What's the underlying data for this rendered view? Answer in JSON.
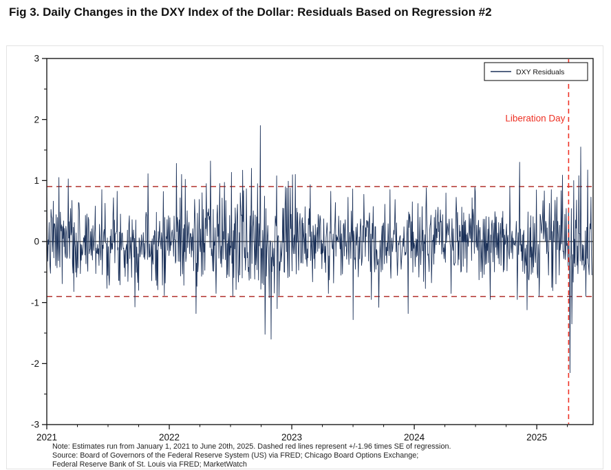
{
  "figure": {
    "title": "Fig 3. Daily Changes in the DXY Index of the Dollar: Residuals Based on Regression #2"
  },
  "notes": {
    "line1": "Note: Estimates run from January 1, 2021 to June 20th, 2025. Dashed red lines represent +/-1.96 times SE of regression.",
    "line2": "Source: Board of Governors of the Federal Reserve System (US) via FRED; Chicago Board Options Exchange;",
    "line3": "Federal Reserve Bank of St. Louis via FRED; MarketWatch"
  },
  "chart_data": {
    "type": "line",
    "title": "Fig 3. Daily Changes in the DXY Index of the Dollar: Residuals Based on Regression #2",
    "xlabel": "",
    "ylabel": "",
    "x_range": [
      2021,
      2025.46
    ],
    "ylim": [
      -3,
      3
    ],
    "yticks": [
      3,
      2,
      1,
      0,
      -1,
      -2,
      -3
    ],
    "xticks": [
      2021,
      2022,
      2023,
      2024,
      2025
    ],
    "grid": false,
    "zero_line": 0,
    "series": [
      {
        "name": "DXY Residuals",
        "color": "#1b3159"
      }
    ],
    "legend": {
      "label": "DXY Residuals",
      "position": "top-right"
    },
    "se_bands": {
      "upper": 0.9,
      "lower": -0.9,
      "color": "#b8403c",
      "style": "dashed",
      "meaning": "+/-1.96 times SE of regression"
    },
    "event_line": {
      "x": 2025.26,
      "label": "Liberation Day",
      "color": "#ee3124",
      "style": "dashed"
    },
    "generation": {
      "seed": 7,
      "points": 1170,
      "base_sd": 0.33,
      "clamp": 1.32,
      "data_end": 2025.45,
      "volatility": [
        {
          "from": 2021.0,
          "to": 2022.3,
          "sd": 0.34
        },
        {
          "from": 2022.3,
          "to": 2023.1,
          "sd": 0.44
        },
        {
          "from": 2023.1,
          "to": 2024.9,
          "sd": 0.3
        },
        {
          "from": 2024.9,
          "to": 2025.46,
          "sd": 0.38
        }
      ],
      "spikes": [
        {
          "t": 2021.1,
          "v": 1.05
        },
        {
          "t": 2021.22,
          "v": -0.82
        },
        {
          "t": 2021.45,
          "v": 0.85
        },
        {
          "t": 2021.75,
          "v": -0.8
        },
        {
          "t": 2021.95,
          "v": 0.82
        },
        {
          "t": 2022.06,
          "v": 1.28
        },
        {
          "t": 2022.1,
          "v": 1.1
        },
        {
          "t": 2022.13,
          "v": 1.02
        },
        {
          "t": 2022.22,
          "v": -1.18
        },
        {
          "t": 2022.3,
          "v": 0.95
        },
        {
          "t": 2022.38,
          "v": -0.85
        },
        {
          "t": 2022.45,
          "v": 0.97
        },
        {
          "t": 2022.52,
          "v": -0.9
        },
        {
          "t": 2022.6,
          "v": 1.17
        },
        {
          "t": 2022.67,
          "v": 1.2
        },
        {
          "t": 2022.72,
          "v": 0.95
        },
        {
          "t": 2022.745,
          "v": 1.9
        },
        {
          "t": 2022.78,
          "v": -1.52
        },
        {
          "t": 2022.83,
          "v": -1.6
        },
        {
          "t": 2022.88,
          "v": -1.1
        },
        {
          "t": 2022.95,
          "v": 0.9
        },
        {
          "t": 2023.03,
          "v": 1.1
        },
        {
          "t": 2023.15,
          "v": 0.93
        },
        {
          "t": 2023.3,
          "v": -0.85
        },
        {
          "t": 2023.5,
          "v": -1.28
        },
        {
          "t": 2023.65,
          "v": -0.95
        },
        {
          "t": 2023.8,
          "v": 0.85
        },
        {
          "t": 2023.95,
          "v": -1.18
        },
        {
          "t": 2024.1,
          "v": 0.88
        },
        {
          "t": 2024.3,
          "v": -0.85
        },
        {
          "t": 2024.5,
          "v": 0.82
        },
        {
          "t": 2024.62,
          "v": -0.95
        },
        {
          "t": 2024.78,
          "v": 0.9
        },
        {
          "t": 2024.86,
          "v": 1.3
        },
        {
          "t": 2024.92,
          "v": -1.12
        },
        {
          "t": 2025.02,
          "v": -0.9
        },
        {
          "t": 2025.12,
          "v": 0.85
        },
        {
          "t": 2025.27,
          "v": -2.15
        },
        {
          "t": 2025.285,
          "v": -1.35
        },
        {
          "t": 2025.3,
          "v": 1.0
        },
        {
          "t": 2025.36,
          "v": 1.55
        },
        {
          "t": 2025.4,
          "v": -0.9
        }
      ]
    }
  }
}
